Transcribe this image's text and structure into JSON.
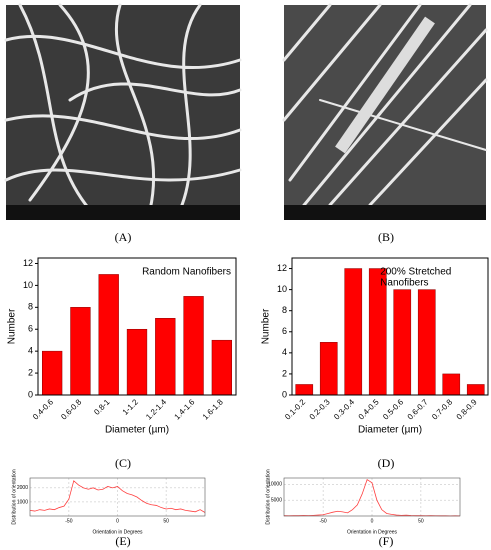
{
  "panels": [
    "(A)",
    "(B)",
    "(C)",
    "(D)",
    "(E)",
    "(F)"
  ],
  "chart_data": [
    {
      "type": "bar",
      "annotation": [
        "Random Nanofibers"
      ],
      "xlabel": "Diameter (µm)",
      "ylabel": "Number",
      "categories": [
        "0.4-0.6",
        "0.6-0.8",
        "0.8-1",
        "1-1.2",
        "1.2-1.4",
        "1.4-1.6",
        "1.6-1.8"
      ],
      "values": [
        4,
        8,
        11,
        6,
        7,
        9,
        5
      ],
      "color": "#ff0000",
      "ylim": [
        0,
        12.5
      ],
      "yticks": [
        0,
        2,
        4,
        6,
        8,
        10,
        12
      ]
    },
    {
      "type": "bar",
      "annotation": [
        "200% Stretched",
        "Nanofibers"
      ],
      "xlabel": "Diameter (µm)",
      "ylabel": "Number",
      "categories": [
        "0.1-0.2",
        "0.2-0.3",
        "0.3-0.4",
        "0.4-0.5",
        "0.5-0.6",
        "0.6-0.7",
        "0.7-0.8",
        "0.8-0.9"
      ],
      "values": [
        1,
        5,
        12,
        12,
        10,
        10,
        2,
        1
      ],
      "color": "#ff0000",
      "ylim": [
        0,
        13
      ],
      "yticks": [
        0,
        2,
        4,
        6,
        8,
        10,
        12
      ]
    },
    {
      "type": "line",
      "xlabel": "Orientation in Degrees",
      "ylabel": "Distribution of orientation",
      "grid": true,
      "x": [
        -90,
        -85,
        -80,
        -75,
        -70,
        -65,
        -60,
        -55,
        -50,
        -45,
        -40,
        -35,
        -30,
        -25,
        -20,
        -15,
        -10,
        -5,
        0,
        5,
        10,
        15,
        20,
        25,
        30,
        35,
        40,
        45,
        50,
        55,
        60,
        65,
        70,
        75,
        80,
        85,
        90
      ],
      "series": [
        {
          "color": "#ff4040",
          "values": [
            400,
            350,
            450,
            400,
            500,
            450,
            600,
            700,
            1200,
            2500,
            2200,
            2000,
            1900,
            2000,
            1850,
            1900,
            2100,
            2000,
            2100,
            1800,
            1600,
            1500,
            1350,
            1100,
            900,
            800,
            750,
            600,
            500,
            550,
            450,
            500,
            400,
            350,
            300,
            450,
            250
          ]
        }
      ],
      "xlim": [
        -90,
        90
      ],
      "xticks": [
        -50,
        0,
        50
      ],
      "ylim": [
        0,
        2700
      ],
      "yticks": [
        1000,
        2000
      ]
    },
    {
      "type": "line",
      "xlabel": "Orientation in Degrees",
      "ylabel": "Distribution of orientation",
      "grid": true,
      "x": [
        -90,
        -85,
        -80,
        -75,
        -70,
        -65,
        -60,
        -55,
        -50,
        -45,
        -40,
        -35,
        -30,
        -25,
        -20,
        -15,
        -10,
        -5,
        0,
        5,
        10,
        15,
        20,
        25,
        30,
        35,
        40,
        45,
        50,
        55,
        60,
        65,
        70,
        75,
        80,
        85,
        90
      ],
      "series": [
        {
          "color": "#ff4040",
          "values": [
            100,
            80,
            120,
            100,
            150,
            120,
            200,
            300,
            400,
            800,
            1200,
            1500,
            1300,
            1000,
            2000,
            3500,
            7000,
            11500,
            10500,
            5000,
            2000,
            800,
            500,
            300,
            200,
            250,
            150,
            100,
            120,
            80,
            100,
            90,
            60,
            80,
            50,
            70,
            40
          ]
        }
      ],
      "xlim": [
        -90,
        90
      ],
      "xticks": [
        -50,
        0,
        50
      ],
      "ylim": [
        0,
        12000
      ],
      "yticks": [
        5000,
        10000
      ]
    }
  ]
}
